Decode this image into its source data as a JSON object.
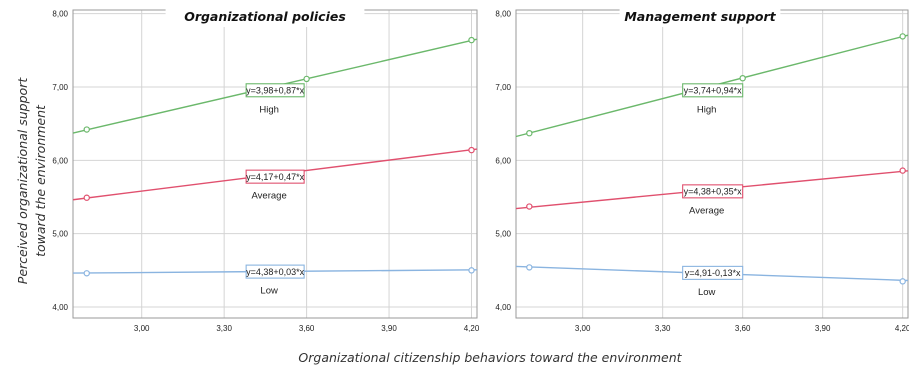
{
  "figure": {
    "y_label_line1": "Perceived organizational support",
    "y_label_line2": "toward  the environment",
    "x_label": "Organizational citizenship behaviors toward  the environment"
  },
  "chart_data": [
    {
      "type": "line",
      "title": "Organizational policies",
      "xlim": [
        2.75,
        4.22
      ],
      "ylim": [
        3.85,
        8.05
      ],
      "x_ticks": [
        3.0,
        3.3,
        3.6,
        3.9,
        4.2
      ],
      "x_tick_labels": [
        "3,00",
        "3,30",
        "3,60",
        "3,90",
        "4,20"
      ],
      "y_ticks": [
        4.0,
        5.0,
        6.0,
        7.0,
        8.0
      ],
      "y_tick_labels": [
        "4,00",
        "5,00",
        "6,00",
        "7,00",
        "8,00"
      ],
      "grid": true,
      "series": [
        {
          "name": "High",
          "color": "#6bb86b",
          "intercept": 3.98,
          "slope": 0.87,
          "equation": "y=3,98+0,87*x",
          "markers": [
            {
              "x": 2.8,
              "y": 6.42
            },
            {
              "x": 3.6,
              "y": 7.11
            },
            {
              "x": 4.2,
              "y": 7.64
            }
          ]
        },
        {
          "name": "Average",
          "color": "#e0506e",
          "intercept": 4.17,
          "slope": 0.47,
          "equation": "y=4,17+0,47*x",
          "markers": [
            {
              "x": 2.8,
              "y": 5.49
            },
            {
              "x": 4.2,
              "y": 6.14
            }
          ]
        },
        {
          "name": "Low",
          "color": "#8ab4e0",
          "intercept": 4.38,
          "slope": 0.03,
          "equation": "y=4,38+0,03*x",
          "markers": [
            {
              "x": 2.8,
              "y": 4.46
            },
            {
              "x": 4.2,
              "y": 4.5
            }
          ]
        }
      ]
    },
    {
      "type": "line",
      "title": "Management support",
      "xlim": [
        2.75,
        4.22
      ],
      "ylim": [
        3.85,
        8.05
      ],
      "x_ticks": [
        3.0,
        3.3,
        3.6,
        3.9,
        4.2
      ],
      "x_tick_labels": [
        "3,00",
        "3,30",
        "3,60",
        "3,90",
        "4,20"
      ],
      "y_ticks": [
        4.0,
        5.0,
        6.0,
        7.0,
        8.0
      ],
      "y_tick_labels": [
        "4,00",
        "5,00",
        "6,00",
        "7,00",
        "8,00"
      ],
      "grid": true,
      "series": [
        {
          "name": "High",
          "color": "#6bb86b",
          "intercept": 3.74,
          "slope": 0.94,
          "equation": "y=3,74+0,94*x",
          "markers": [
            {
              "x": 2.8,
              "y": 6.37
            },
            {
              "x": 3.6,
              "y": 7.12
            },
            {
              "x": 4.2,
              "y": 7.69
            }
          ]
        },
        {
          "name": "Average",
          "color": "#e0506e",
          "intercept": 4.38,
          "slope": 0.35,
          "equation": "y=4,38+0,35*x",
          "markers": [
            {
              "x": 2.8,
              "y": 5.37
            },
            {
              "x": 4.2,
              "y": 5.86
            }
          ]
        },
        {
          "name": "Low",
          "color": "#8ab4e0",
          "intercept": 4.91,
          "slope": -0.13,
          "equation": "y=4,91-0,13*x",
          "markers": [
            {
              "x": 2.8,
              "y": 4.54
            },
            {
              "x": 4.2,
              "y": 4.35
            }
          ]
        }
      ]
    }
  ]
}
